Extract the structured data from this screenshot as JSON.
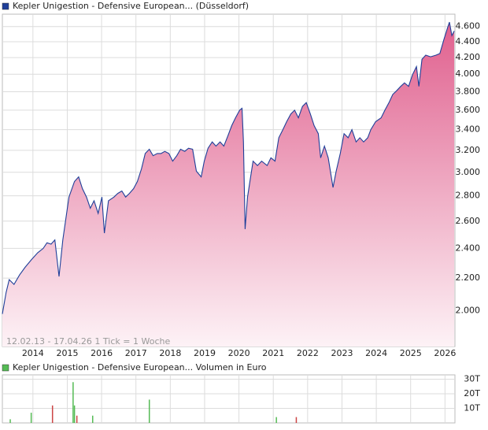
{
  "chart_data": [
    {
      "type": "area",
      "series": [
        {
          "name": "Kepler Unigestion - Defensive European... (Düsseldorf)",
          "color": "#1f3f99",
          "fill": "#e0608e",
          "x": [
            2013.11,
            2013.22,
            2013.31,
            2013.45,
            2013.61,
            2013.77,
            2013.95,
            2014.14,
            2014.3,
            2014.41,
            2014.53,
            2014.64,
            2014.76,
            2014.87,
            2015.05,
            2015.21,
            2015.33,
            2015.44,
            2015.56,
            2015.67,
            2015.78,
            2015.9,
            2016.01,
            2016.08,
            2016.2,
            2016.36,
            2016.47,
            2016.59,
            2016.7,
            2016.81,
            2016.93,
            2017.04,
            2017.16,
            2017.27,
            2017.39,
            2017.5,
            2017.62,
            2017.73,
            2017.84,
            2017.96,
            2018.07,
            2018.19,
            2018.3,
            2018.42,
            2018.53,
            2018.65,
            2018.76,
            2018.9,
            2018.99,
            2019.1,
            2019.22,
            2019.33,
            2019.45,
            2019.56,
            2019.68,
            2019.79,
            2019.9,
            2020.02,
            2020.09,
            2020.13,
            2020.18,
            2020.25,
            2020.32,
            2020.41,
            2020.54,
            2020.66,
            2020.82,
            2020.93,
            2021.05,
            2021.16,
            2021.28,
            2021.39,
            2021.51,
            2021.62,
            2021.73,
            2021.85,
            2021.96,
            2022.08,
            2022.19,
            2022.31,
            2022.38,
            2022.49,
            2022.6,
            2022.74,
            2022.83,
            2022.95,
            2023.06,
            2023.18,
            2023.29,
            2023.41,
            2023.52,
            2023.63,
            2023.75,
            2023.84,
            2023.98,
            2024.14,
            2024.25,
            2024.37,
            2024.48,
            2024.59,
            2024.71,
            2024.82,
            2024.94,
            2025.05,
            2025.17,
            2025.24,
            2025.33,
            2025.44,
            2025.58,
            2025.74,
            2025.85,
            2025.97,
            2026.08,
            2026.13,
            2026.2,
            2026.27
          ],
          "values": [
            1.98,
            2.11,
            2.19,
            2.16,
            2.22,
            2.27,
            2.32,
            2.37,
            2.4,
            2.44,
            2.43,
            2.46,
            2.21,
            2.46,
            2.79,
            2.92,
            2.96,
            2.86,
            2.79,
            2.7,
            2.76,
            2.66,
            2.79,
            2.51,
            2.76,
            2.79,
            2.82,
            2.84,
            2.79,
            2.82,
            2.86,
            2.92,
            3.03,
            3.17,
            3.21,
            3.15,
            3.17,
            3.17,
            3.19,
            3.17,
            3.1,
            3.15,
            3.21,
            3.19,
            3.22,
            3.21,
            3.01,
            2.96,
            3.1,
            3.22,
            3.28,
            3.24,
            3.28,
            3.24,
            3.34,
            3.44,
            3.52,
            3.6,
            3.62,
            3.28,
            2.54,
            2.79,
            2.92,
            3.1,
            3.06,
            3.1,
            3.06,
            3.13,
            3.1,
            3.32,
            3.4,
            3.48,
            3.56,
            3.6,
            3.52,
            3.64,
            3.68,
            3.56,
            3.44,
            3.36,
            3.13,
            3.24,
            3.13,
            2.87,
            3.01,
            3.17,
            3.36,
            3.32,
            3.4,
            3.28,
            3.32,
            3.28,
            3.32,
            3.4,
            3.48,
            3.52,
            3.6,
            3.68,
            3.77,
            3.81,
            3.86,
            3.9,
            3.86,
            3.99,
            4.09,
            3.86,
            4.18,
            4.23,
            4.21,
            4.23,
            4.25,
            4.43,
            4.59,
            4.66,
            4.48,
            4.54
          ]
        }
      ],
      "annotation": "12.02.13 - 17.04.26   1 Tick = 1 Woche",
      "yscale": "log",
      "xlim": [
        2013.11,
        2026.29
      ],
      "xticks": [
        2014,
        2015,
        2016,
        2017,
        2018,
        2019,
        2020,
        2021,
        2022,
        2023,
        2024,
        2025,
        2026
      ],
      "ylim": [
        1.8,
        4.77
      ],
      "yticks": [
        {
          "value": 2.0,
          "label": "2.000"
        },
        {
          "value": 2.2,
          "label": "2.200"
        },
        {
          "value": 2.4,
          "label": "2.400"
        },
        {
          "value": 2.6,
          "label": "2.600"
        },
        {
          "value": 2.8,
          "label": "2.800"
        },
        {
          "value": 3.0,
          "label": "3.000"
        },
        {
          "value": 3.2,
          "label": "3.200"
        },
        {
          "value": 3.4,
          "label": "3.400"
        },
        {
          "value": 3.6,
          "label": "3.600"
        },
        {
          "value": 3.8,
          "label": "3.800"
        },
        {
          "value": 4.0,
          "label": "4.000"
        },
        {
          "value": 4.2,
          "label": "4.200"
        },
        {
          "value": 4.4,
          "label": "4.400"
        },
        {
          "value": 4.6,
          "label": "4.600"
        }
      ],
      "grid": true
    },
    {
      "type": "bar",
      "series": [
        {
          "name": "Kepler Unigestion - Defensive European... Volumen in Euro",
          "color": "#55bb55",
          "x": [
            2013.34,
            2013.95,
            2014.57,
            2015.17,
            2015.21,
            2015.28,
            2015.74,
            2017.39,
            2021.09,
            2021.67
          ],
          "values": [
            2500,
            7000,
            12000,
            28000,
            12000,
            5000,
            5000,
            16000,
            4000,
            4000
          ],
          "colors": [
            "#55bb55",
            "#55bb55",
            "#cc4444",
            "#55bb55",
            "#55bb55",
            "#cc4444",
            "#55bb55",
            "#55bb55",
            "#55bb55",
            "#cc4444"
          ]
        }
      ],
      "xlim": [
        2013.11,
        2026.29
      ],
      "xticks": [
        2014,
        2015,
        2016,
        2017,
        2018,
        2019,
        2020,
        2021,
        2022,
        2023,
        2024,
        2025,
        2026
      ],
      "ylim": [
        0,
        33000
      ],
      "yticks": [
        {
          "value": 10000,
          "label": "10T"
        },
        {
          "value": 20000,
          "label": "20T"
        },
        {
          "value": 30000,
          "label": "30T"
        }
      ],
      "grid": true
    }
  ]
}
